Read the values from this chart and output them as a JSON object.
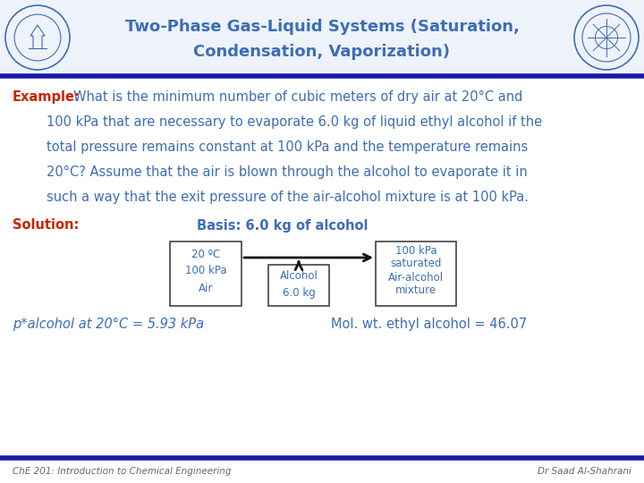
{
  "title_line1": "Two-Phase Gas-Liquid Systems (Saturation,",
  "title_line2": "Condensation, Vaporization)",
  "title_color": "#3d6eb5",
  "header_line_color": "#1a1aaa",
  "bg_color": "#ffffff",
  "example_label": "Example:",
  "example_label_color": "#cc2200",
  "example_text": "What is the minimum number of cubic meters of dry air at 20°C and",
  "body_lines": [
    "100 kPa that are necessary to evaporate 6.0 kg of liquid ethyl alcohol if the",
    "total pressure remains constant at 100 kPa and the temperature remains",
    "20°C? Assume that the air is blown through the alcohol to evaporate it in",
    "such a way that the exit pressure of the air-alcohol mixture is at 100 kPa."
  ],
  "body_color": "#3d6eb5",
  "solution_label": "Solution:",
  "solution_label_color": "#cc2200",
  "basis_text": "Basis: 6.0 kg of alcohol",
  "basis_color": "#3d6eb5",
  "box1_lines": [
    "20 ºC",
    "100 kPa",
    "Air"
  ],
  "box2_lines": [
    "Alcohol",
    "6.0 kg"
  ],
  "box3_lines": [
    "100 kPa",
    "saturated",
    "Air-alcohol",
    "mixture"
  ],
  "box_color": "#3d6eb5",
  "box_edge_color": "#333333",
  "arrow_color": "#111111",
  "note1": "p*alcohol at 20°C = 5.93 kPa",
  "note2": "Mol. wt. ethyl alcohol = 46.07",
  "note_color": "#3d6eb5",
  "footer_left": "ChE 201: Introduction to Chemical Engineering",
  "footer_right": "Dr Saad Al-Shahrani",
  "footer_color": "#666666",
  "footer_line_color": "#1a1aaa",
  "header_bg": "#f0f4fc"
}
